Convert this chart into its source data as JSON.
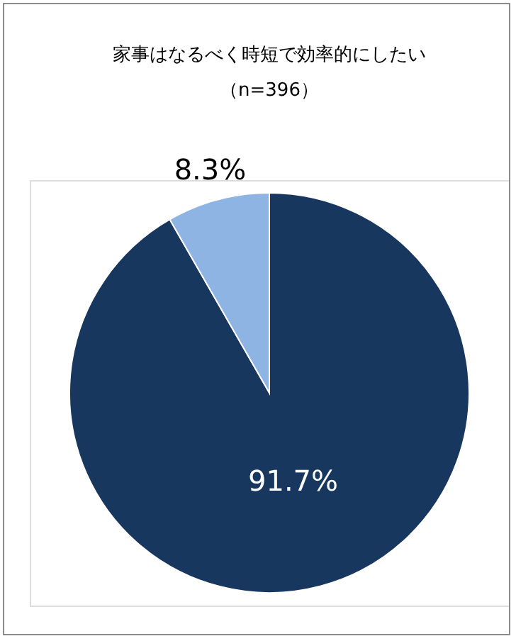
{
  "chart_data": {
    "type": "pie",
    "title": "家事はなるべく時短で効率的にしたい",
    "subtitle": "（n=396）",
    "categories": [
      null,
      null
    ],
    "values": [
      91.7,
      8.3
    ],
    "colors": [
      "#17375e",
      "#8eb4e3"
    ],
    "value_labels": [
      "91.7%",
      "8.3%"
    ],
    "legend": false
  }
}
